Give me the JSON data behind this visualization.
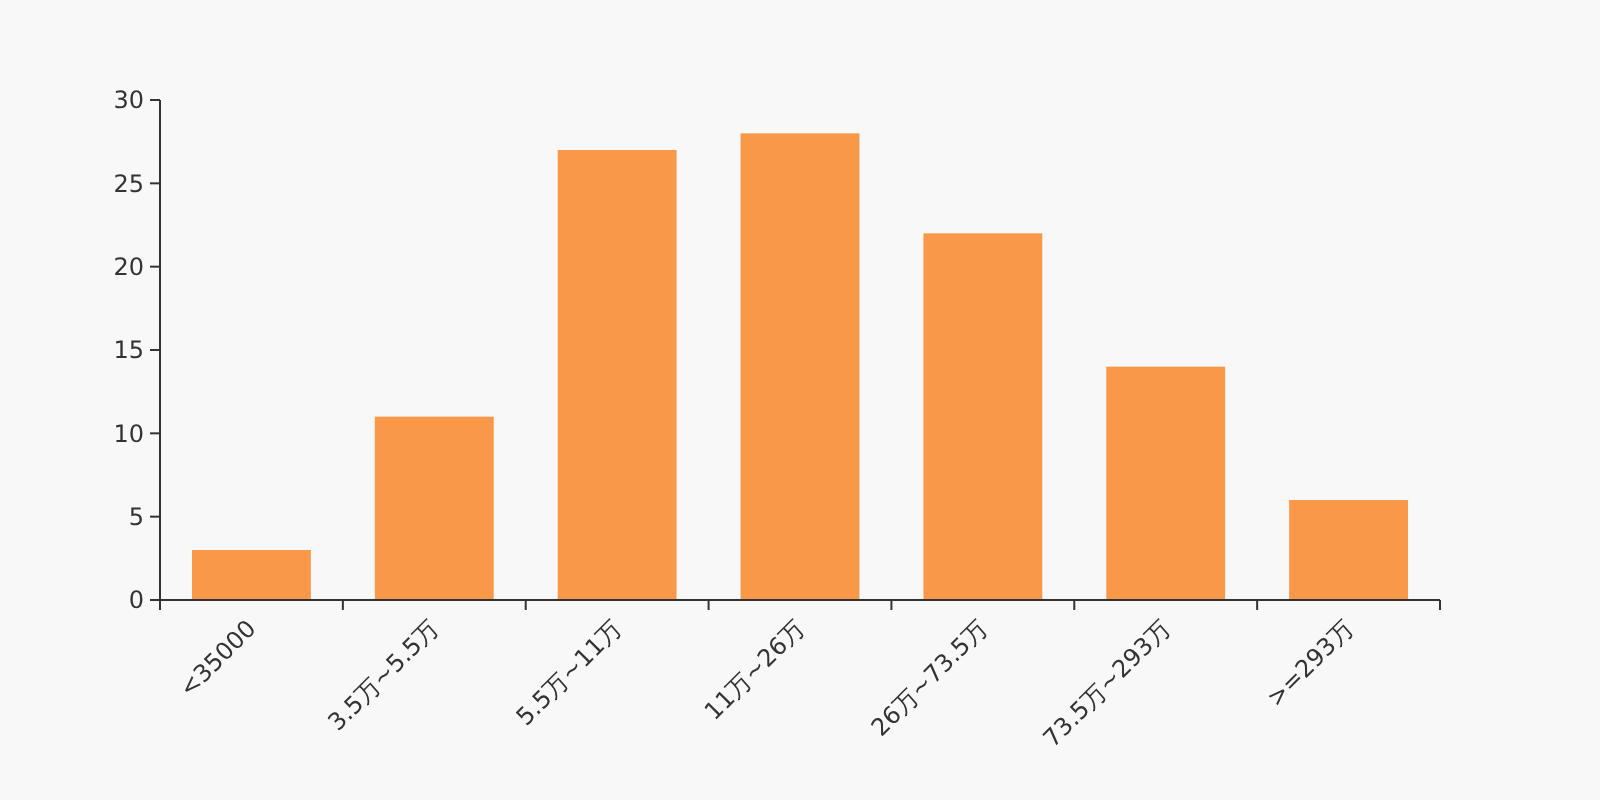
{
  "chart_data": {
    "type": "bar",
    "categories": [
      "<35000",
      "3.5万~5.5万",
      "5.5万~11万",
      "11万~26万",
      "26万~73.5万",
      "73.5万~293万",
      ">=293万"
    ],
    "values": [
      3,
      11,
      27,
      28,
      22,
      14,
      6
    ],
    "color": "#f89848",
    "ylim": [
      0,
      30
    ],
    "yticks": [
      0,
      5,
      10,
      15,
      20,
      25,
      30
    ],
    "grid": false
  }
}
